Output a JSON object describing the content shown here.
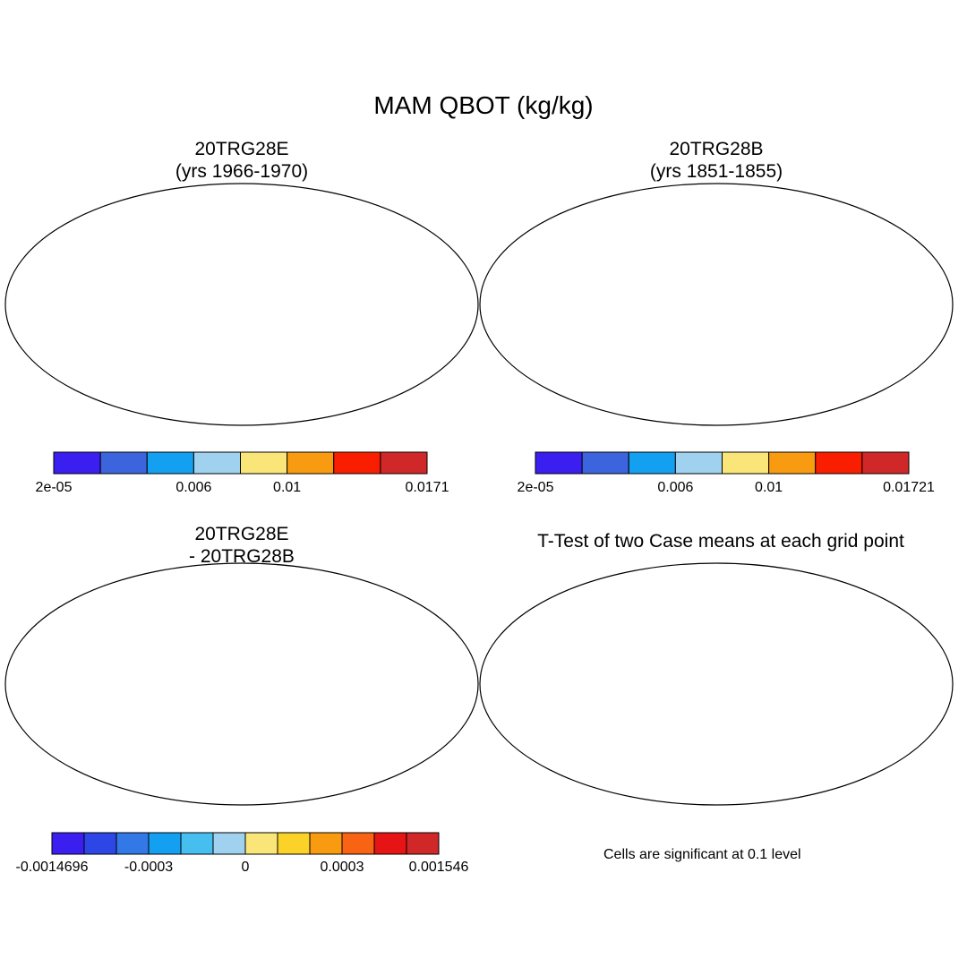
{
  "figure_title": "MAM QBOT (kg/kg)",
  "panels": [
    {
      "id": "p1",
      "title_line1": "20TRG28E",
      "title_line2": "(yrs 1966-1970)"
    },
    {
      "id": "p2",
      "title_line1": "20TRG28B",
      "title_line2": "(yrs 1851-1855)"
    },
    {
      "id": "p3",
      "title_line1": "20TRG28E",
      "title_line2": "- 20TRG28B"
    },
    {
      "id": "p4",
      "title_line1": "T-Test of two Case means at each grid point",
      "title_line2": ""
    }
  ],
  "colorbars": [
    {
      "id": "cb1",
      "colors": [
        "#3b1ef0",
        "#3c64dc",
        "#14a0f0",
        "#a0d2f0",
        "#fae678",
        "#f89b10",
        "#fa1e00",
        "#d02828"
      ],
      "labels": [
        {
          "text": "2e-05",
          "at": 0
        },
        {
          "text": "0.006",
          "at": 3
        },
        {
          "text": "0.01",
          "at": 5
        },
        {
          "text": "0.0171",
          "at": 8
        }
      ]
    },
    {
      "id": "cb2",
      "colors": [
        "#3b1ef0",
        "#3c64dc",
        "#14a0f0",
        "#a0d2f0",
        "#fae678",
        "#f89b10",
        "#fa1e00",
        "#d02828"
      ],
      "labels": [
        {
          "text": "2e-05",
          "at": 0
        },
        {
          "text": "0.006",
          "at": 3
        },
        {
          "text": "0.01",
          "at": 5
        },
        {
          "text": "0.01721",
          "at": 8
        }
      ]
    },
    {
      "id": "cb3",
      "colors": [
        "#3b1ef0",
        "#2d46e6",
        "#3278e6",
        "#14a0f0",
        "#46bef0",
        "#a0d2f0",
        "#fae678",
        "#fad228",
        "#f89b10",
        "#f86414",
        "#e61414",
        "#d02828"
      ],
      "labels": [
        {
          "text": "-0.0014696",
          "at": 0
        },
        {
          "text": "-0.0003",
          "at": 3
        },
        {
          "text": "0",
          "at": 6
        },
        {
          "text": "0.0003",
          "at": 9
        },
        {
          "text": "0.001546",
          "at": 12
        }
      ]
    }
  ],
  "significance_note": "Cells are significant at 0.1 level",
  "colors": {
    "significant": "#ff0000",
    "outline": "#000000",
    "ocean": "#ffffff"
  }
}
